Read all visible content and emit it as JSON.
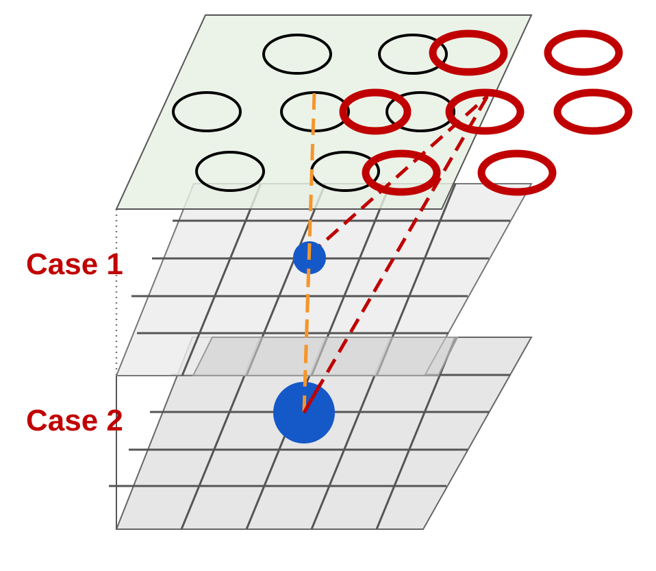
{
  "labels": {
    "case1": "Case 1",
    "case2": "Case 2"
  },
  "colors": {
    "label": "#c00000",
    "red_ring": "#c00000",
    "black_ring": "#000000",
    "orange_line": "#f5962b",
    "red_line": "#c00000",
    "node": "#1558c8",
    "top_plane_fill": "#e6f0e3",
    "grid_fill": "#e6e6e6",
    "grid_line": "#555555"
  },
  "elements": {
    "top_plane": "input-feature-plane",
    "middle_grid": "case-1-grid",
    "bottom_grid": "case-2-grid",
    "small_node": "case-1-node",
    "large_node": "case-2-node"
  }
}
